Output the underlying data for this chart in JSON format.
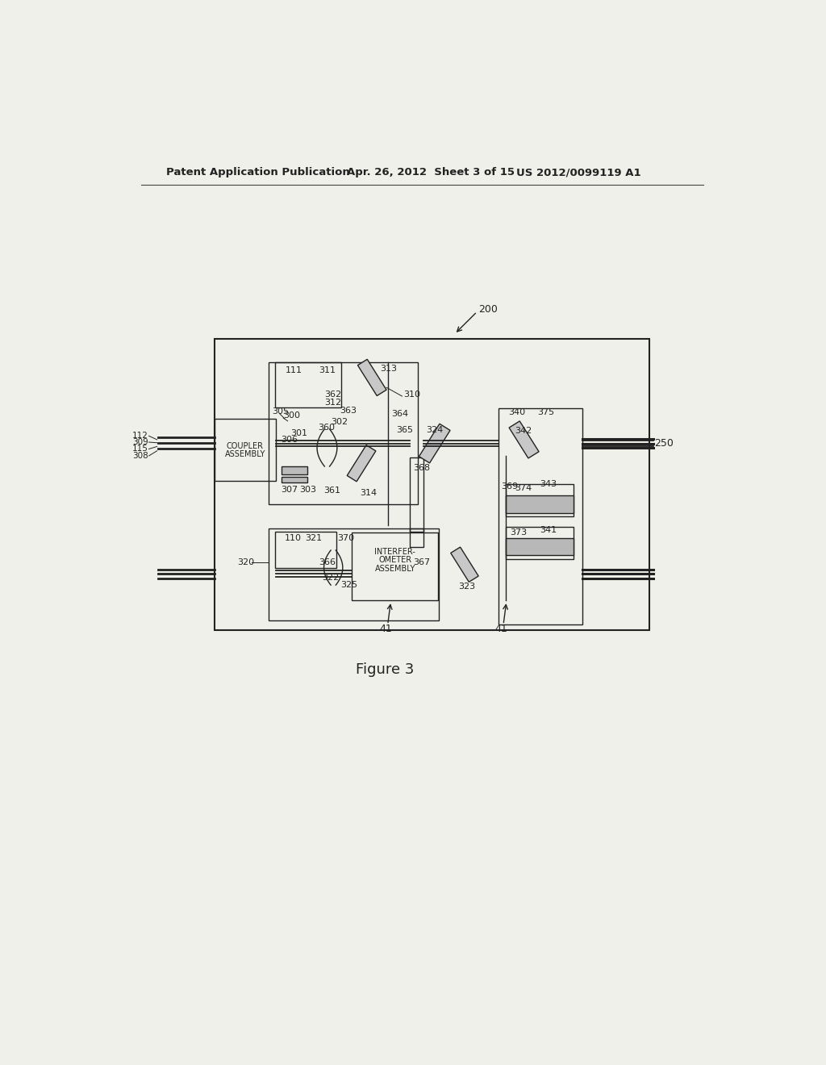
{
  "bg_color": "#f0f0eb",
  "header_left": "Patent Application Publication",
  "header_mid": "Apr. 26, 2012  Sheet 3 of 15",
  "header_right": "US 2012/0099119 A1",
  "figure_label": "Figure 3"
}
